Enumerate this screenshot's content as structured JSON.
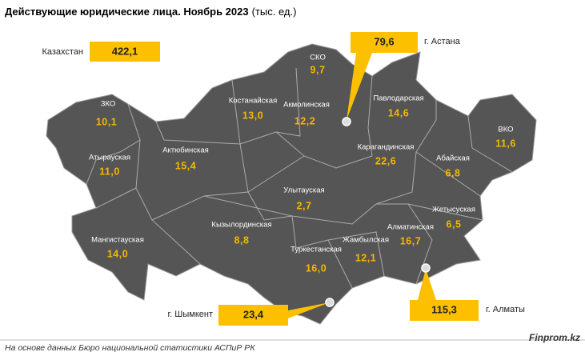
{
  "header": {
    "title": "Действующие юридические лица. Ноябрь 2023",
    "unit": "(тыс. ед.)"
  },
  "total": {
    "label": "Казахстан",
    "value": "422,1"
  },
  "regions": [
    {
      "name": "ЗКО",
      "value": "10,1"
    },
    {
      "name": "Атырауская",
      "value": "11,0"
    },
    {
      "name": "Мангистауская",
      "value": "14,0"
    },
    {
      "name": "Актюбинская",
      "value": "15,4"
    },
    {
      "name": "Костанайская",
      "value": "13,0"
    },
    {
      "name": "СКО",
      "value": "9,7"
    },
    {
      "name": "Акмолинская",
      "value": "12,2"
    },
    {
      "name": "Павлодарская",
      "value": "14,6"
    },
    {
      "name": "ВКО",
      "value": "11,6"
    },
    {
      "name": "Карагандинская",
      "value": "22,6"
    },
    {
      "name": "Абайская",
      "value": "6,8"
    },
    {
      "name": "Улытауская",
      "value": "2,7"
    },
    {
      "name": "Кызылординская",
      "value": "8,8"
    },
    {
      "name": "Жетысуская",
      "value": "6,5"
    },
    {
      "name": "Алматинская",
      "value": "16,7"
    },
    {
      "name": "Жамбылская",
      "value": "12,1"
    },
    {
      "name": "Туркестанская",
      "value": "16,0"
    }
  ],
  "cities": [
    {
      "label": "г. Астана",
      "value": "79,6"
    },
    {
      "label": "г. Шымкент",
      "value": "23,4"
    },
    {
      "label": "г. Алматы",
      "value": "115,3"
    }
  ],
  "footer": {
    "source": "На основе данных Бюро национальной статистики АСПиР РК",
    "brand": "Finprom.kz"
  }
}
